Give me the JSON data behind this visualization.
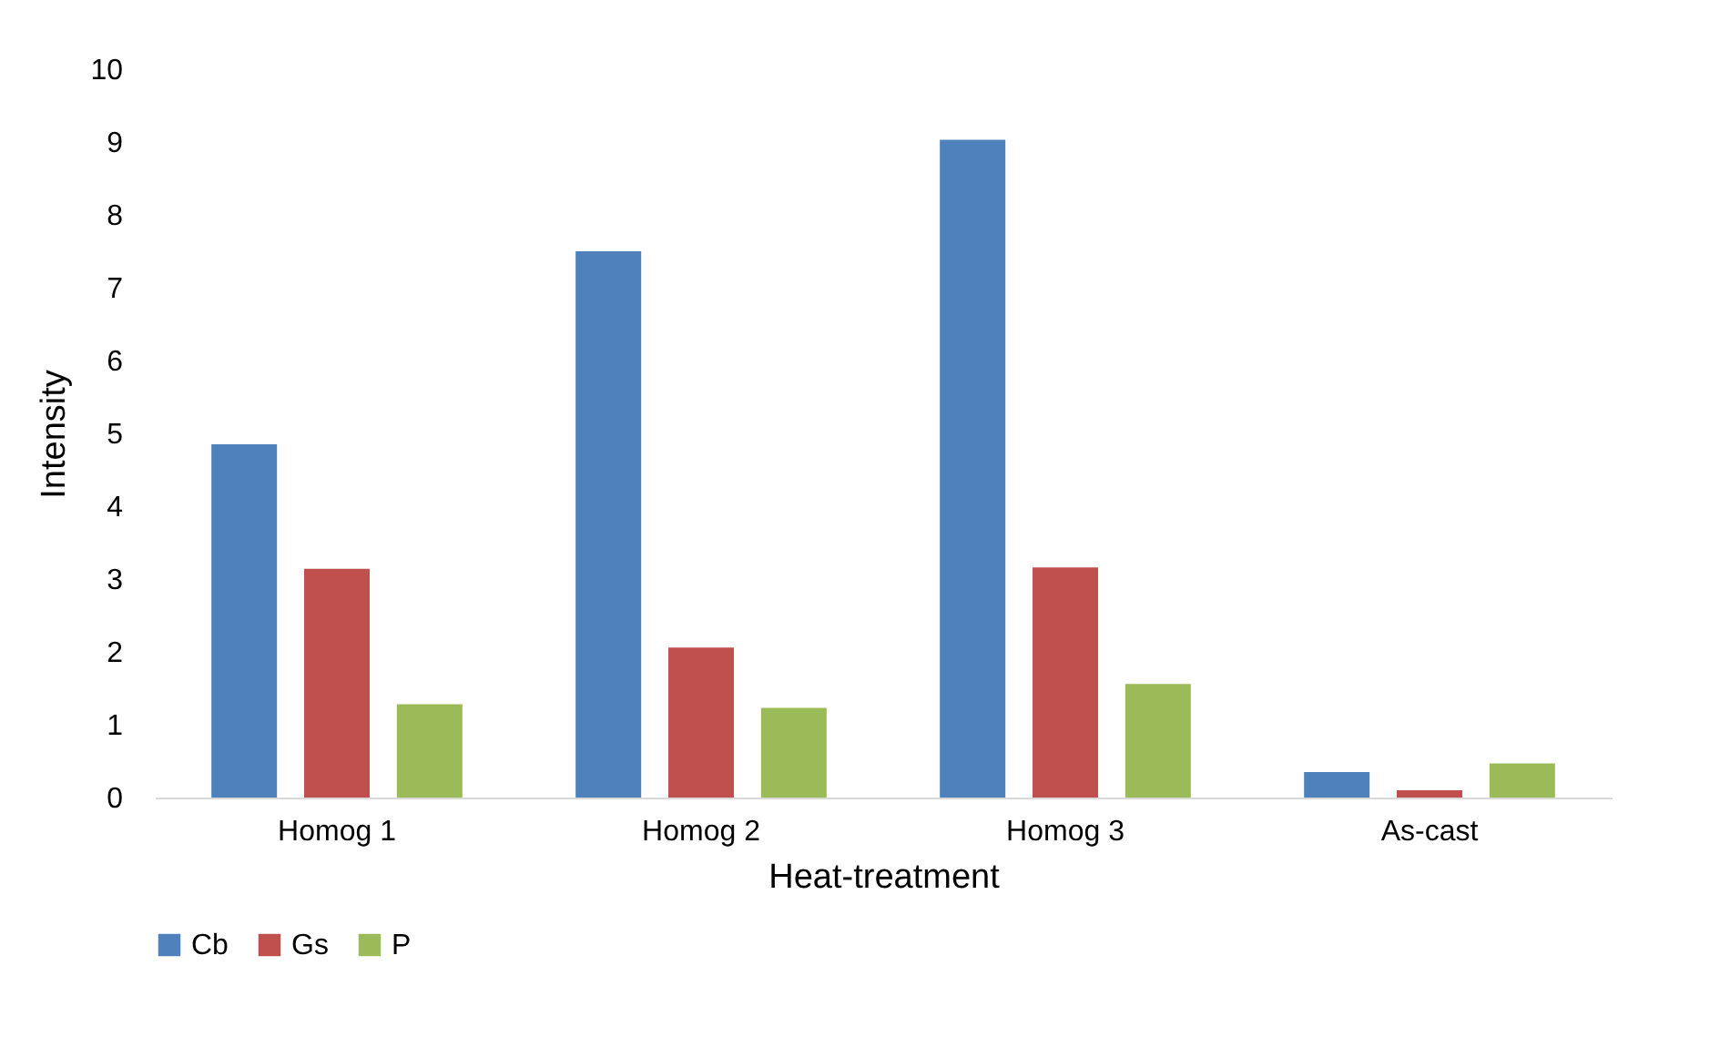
{
  "chart_data": {
    "type": "bar",
    "xlabel": "Heat-treatment",
    "ylabel": "Intensity",
    "categories": [
      "Homog 1",
      "Homog 2",
      "Homog 3",
      "As-cast"
    ],
    "series": [
      {
        "name": "Cb",
        "color": "#4f81bd",
        "values": [
          4.85,
          7.5,
          9.03,
          0.35
        ]
      },
      {
        "name": "Gs",
        "color": "#c0504d",
        "values": [
          3.14,
          2.06,
          3.16,
          0.1
        ]
      },
      {
        "name": "P",
        "color": "#9bbb59",
        "values": [
          1.28,
          1.23,
          1.56,
          0.47
        ]
      }
    ],
    "ylim": [
      0,
      10
    ],
    "yticks": [
      0,
      1,
      2,
      3,
      4,
      5,
      6,
      7,
      8,
      9,
      10
    ],
    "grid": false,
    "legend": "bottom"
  }
}
